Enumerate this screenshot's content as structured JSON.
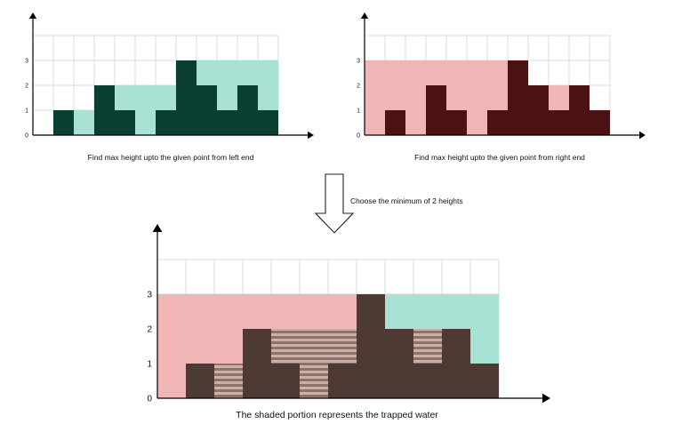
{
  "chart_data": [
    {
      "type": "bar",
      "title": "",
      "caption": "Find max height upto the given point from left end",
      "heights": [
        0,
        1,
        0,
        2,
        1,
        0,
        1,
        3,
        2,
        1,
        2,
        1
      ],
      "overlay": [
        0,
        1,
        1,
        2,
        2,
        2,
        2,
        3,
        3,
        3,
        3,
        3
      ],
      "ylim": [
        0,
        4
      ],
      "yticks": [
        "0",
        "1",
        "2",
        "3"
      ],
      "colors": {
        "bar": "#0b3f33",
        "overlay": "#a8e2d4",
        "grid": "#cfcfcf"
      }
    },
    {
      "type": "bar",
      "title": "",
      "caption": "Find max height upto the given point from right end",
      "heights": [
        0,
        1,
        0,
        2,
        1,
        0,
        1,
        3,
        2,
        1,
        2,
        1
      ],
      "overlay": [
        3,
        3,
        3,
        3,
        3,
        3,
        3,
        3,
        2,
        2,
        2,
        1
      ],
      "ylim": [
        0,
        4
      ],
      "yticks": [
        "0",
        "1",
        "2",
        "3"
      ],
      "colors": {
        "bar": "#4a1212",
        "overlay": "#f0b6b6",
        "grid": "#cfcfcf"
      }
    },
    {
      "type": "bar",
      "title": "",
      "caption": "The shaded portion represents the trapped water",
      "heights": [
        0,
        1,
        0,
        2,
        1,
        0,
        1,
        3,
        2,
        1,
        2,
        1
      ],
      "overlay_left_side_pink": [
        3,
        3,
        3,
        3,
        3,
        3,
        3
      ],
      "overlay_right_side_teal": [
        3,
        3,
        3,
        3,
        3
      ],
      "water": [
        0,
        0,
        1,
        0,
        1,
        2,
        1,
        0,
        0,
        1,
        0,
        0
      ],
      "ylim": [
        0,
        4
      ],
      "yticks": [
        "0",
        "1",
        "2",
        "3"
      ],
      "colors": {
        "bar": "#4d3a35",
        "pink": "#f0b6b6",
        "teal": "#a8e2d4",
        "water": "#b5958a",
        "grid": "#cfcfcf"
      }
    }
  ],
  "arrow": {
    "label": "Choose the minimum of 2 heights"
  }
}
